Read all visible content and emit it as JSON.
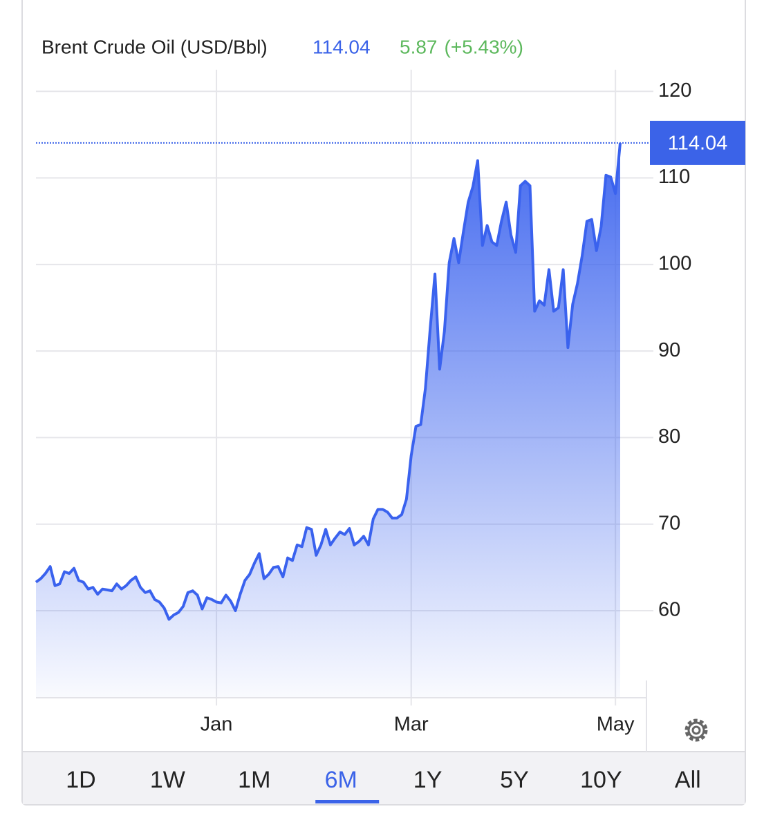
{
  "chart_data": {
    "type": "area",
    "title": "Brent Crude Oil (USD/Bbl)",
    "last_value": 114.04,
    "change": 5.87,
    "change_label": "(+5.43%)",
    "color": "#3a62ee",
    "change_color": "#5cb85c",
    "categories": [
      null,
      null,
      null,
      null,
      null,
      null,
      null,
      null,
      null,
      null,
      null,
      null,
      null,
      null,
      null,
      null,
      null,
      null,
      null,
      null,
      null,
      null,
      null,
      null,
      null,
      null,
      null,
      null,
      null,
      null,
      null,
      null,
      null,
      null,
      null,
      null,
      null,
      null,
      "Jan",
      null,
      null,
      null,
      null,
      null,
      null,
      null,
      null,
      null,
      null,
      null,
      null,
      null,
      null,
      null,
      null,
      null,
      null,
      null,
      null,
      null,
      null,
      null,
      null,
      null,
      null,
      null,
      null,
      null,
      null,
      null,
      null,
      null,
      null,
      null,
      null,
      null,
      null,
      null,
      null,
      "Mar",
      null,
      null,
      null,
      null,
      null,
      null,
      null,
      null,
      null,
      null,
      null,
      null,
      null,
      null,
      null,
      null,
      null,
      null,
      null,
      null,
      null,
      null,
      null,
      null,
      null,
      null,
      null,
      null,
      null,
      null,
      null,
      null,
      null,
      null,
      null,
      null,
      null,
      null,
      null,
      null,
      null,
      null,
      "May",
      null
    ],
    "values": [
      63.3,
      63.7,
      64.3,
      65.1,
      62.9,
      63.1,
      64.5,
      64.3,
      64.9,
      63.5,
      63.3,
      62.5,
      62.7,
      61.9,
      62.5,
      62.4,
      62.3,
      63.1,
      62.5,
      62.9,
      63.5,
      63.9,
      62.7,
      62.1,
      62.3,
      61.3,
      61.0,
      60.3,
      59.0,
      59.5,
      59.8,
      60.5,
      62.1,
      62.3,
      61.8,
      60.2,
      61.5,
      61.3,
      61.0,
      60.9,
      61.8,
      61.1,
      60.0,
      61.9,
      63.5,
      64.2,
      65.5,
      66.6,
      63.7,
      64.2,
      65.0,
      65.1,
      63.9,
      66.1,
      65.8,
      67.6,
      67.4,
      69.6,
      69.4,
      66.4,
      67.6,
      69.4,
      67.6,
      68.4,
      69.1,
      68.8,
      69.5,
      67.6,
      68.0,
      68.6,
      67.6,
      70.6,
      71.7,
      71.7,
      71.4,
      70.7,
      70.7,
      71.1,
      72.9,
      77.9,
      81.3,
      81.5,
      85.7,
      92.6,
      98.9,
      87.9,
      92.3,
      100.2,
      103.0,
      100.2,
      103.8,
      107.2,
      109.0,
      112.0,
      102.2,
      104.5,
      102.6,
      102.2,
      105.0,
      107.2,
      103.4,
      101.4,
      109.1,
      109.6,
      109.1,
      94.6,
      95.8,
      95.3,
      99.4,
      94.6,
      95.0,
      99.4,
      90.4,
      95.4,
      97.8,
      101.0,
      105.0,
      105.2,
      101.6,
      104.4,
      110.3,
      110.1,
      108.2,
      114.04
    ],
    "ylim": [
      50,
      122.5
    ],
    "yticks": [
      60,
      70,
      80,
      90,
      100,
      110,
      120
    ],
    "grid": true,
    "timeframes": [
      "1D",
      "1W",
      "1M",
      "6M",
      "1Y",
      "5Y",
      "10Y",
      "All"
    ],
    "selected_timeframe": "6M"
  }
}
